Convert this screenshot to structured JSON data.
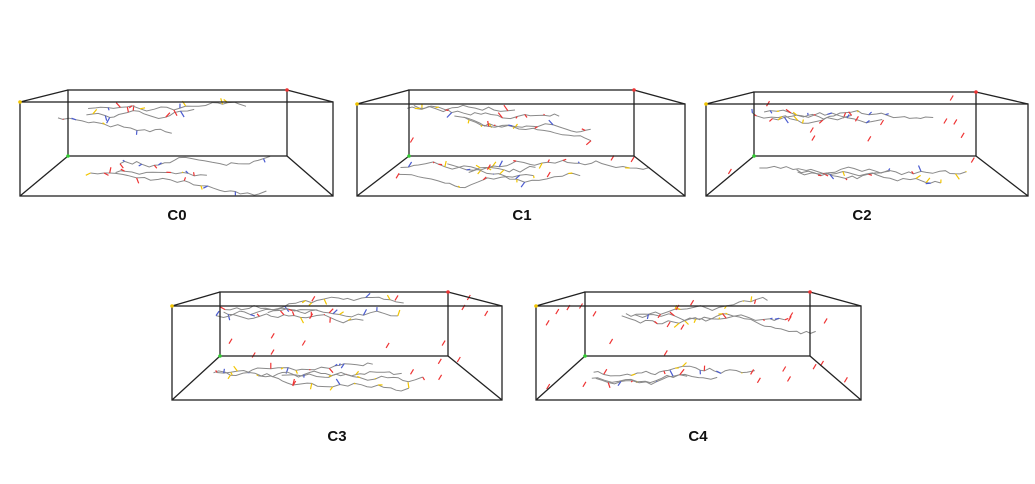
{
  "panels": [
    {
      "label": "C0"
    },
    {
      "label": "C1"
    },
    {
      "label": "C2"
    },
    {
      "label": "C3"
    },
    {
      "label": "C4"
    }
  ]
}
